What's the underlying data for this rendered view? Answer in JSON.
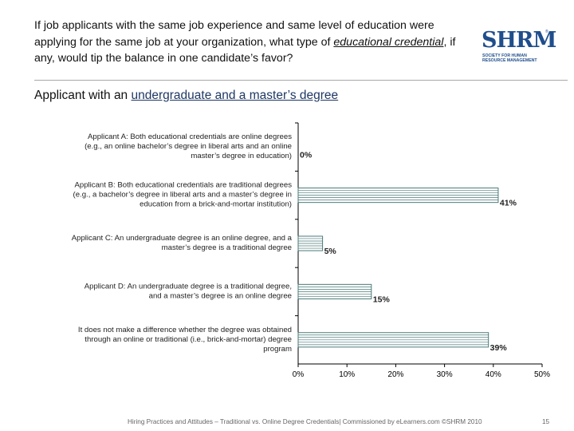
{
  "question": {
    "part1": "If job applicants with the same job experience and same level of education were applying for the same job at your organization, what type of ",
    "part2": "educational credential",
    "part3": ", if any, would tip the balance in one candidate’s favor?"
  },
  "logo": {
    "word": "SHRM",
    "reg": "®",
    "tag1": "SOCIETY FOR HUMAN",
    "tag2": "RESOURCE MANAGEMENT"
  },
  "subtitle": {
    "prefix": "Applicant with an ",
    "underlined": "undergraduate and a master’s degree"
  },
  "colors": {
    "bar_stroke": "#4a7a78",
    "bar_fill": "#ffffff",
    "axis": "#000000"
  },
  "chart_data": {
    "type": "bar",
    "orientation": "horizontal",
    "title": "Applicant with an undergraduate and a master’s degree",
    "categories": [
      [
        "Applicant A: Both educational credentials are online degrees",
        "(e.g., an online bachelor’s degree in liberal arts and an online",
        "master’s degree in education)"
      ],
      [
        "Applicant B: Both educational credentials are traditional degrees",
        "(e.g., a bachelor’s degree in liberal arts and a master’s degree in",
        "education from a brick-and-mortar institution)"
      ],
      [
        "Applicant C: An undergraduate degree is an online degree, and a",
        "master’s degree is a traditional degree"
      ],
      [
        "Applicant D: An undergraduate degree is a traditional degree,",
        "and a master’s degree is an online degree"
      ],
      [
        "It does not make a difference whether the degree was obtained",
        "through an online or traditional (i.e., brick-and-mortar) degree",
        "program"
      ]
    ],
    "values": [
      0,
      41,
      5,
      15,
      39
    ],
    "data_labels": [
      "0%",
      "41%",
      "5%",
      "15%",
      "39%"
    ],
    "xlim": [
      0,
      50
    ],
    "xticks": [
      0,
      10,
      20,
      30,
      40,
      50
    ],
    "xtick_labels": [
      "0%",
      "10%",
      "20%",
      "30%",
      "40%",
      "50%"
    ],
    "xlabel": "",
    "ylabel": "",
    "grid": false
  },
  "footer": {
    "text": "Hiring Practices and Attitudes – Traditional vs. Online Degree Credentials| Commissioned by eLearners.com ©SHRM 2010",
    "page": "15"
  }
}
